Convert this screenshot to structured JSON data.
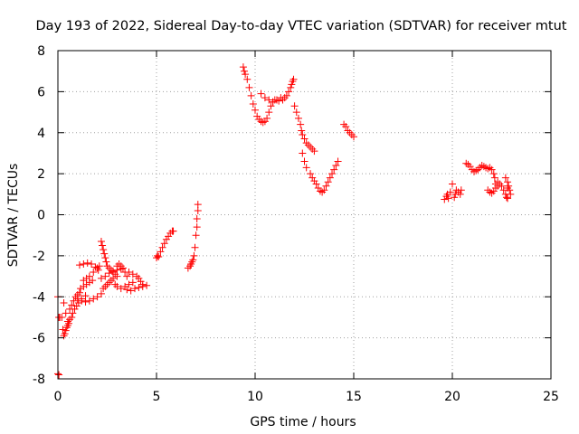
{
  "chart_data": {
    "type": "scatter",
    "title": "Day 193 of 2022, Sidereal Day-to-day VTEC variation (SDTVAR) for receiver mtut",
    "xlabel": "GPS time / hours",
    "ylabel": "SDTVAR / TECUs",
    "xlim": [
      0,
      25
    ],
    "ylim": [
      -8,
      8
    ],
    "xticks": [
      0,
      5,
      10,
      15,
      20,
      25
    ],
    "yticks": [
      -8,
      -6,
      -4,
      -2,
      0,
      2,
      4,
      6,
      8
    ],
    "grid": true,
    "marker": "+",
    "series": [
      {
        "name": "SDTVAR",
        "color": "#ff0000",
        "points": [
          [
            0.0,
            -7.75
          ],
          [
            0.05,
            -7.8
          ],
          [
            0.0,
            -4.0
          ],
          [
            0.05,
            -5.0
          ],
          [
            0.1,
            -5.0
          ],
          [
            0.2,
            -5.0
          ],
          [
            0.25,
            -5.6
          ],
          [
            0.3,
            -5.9
          ],
          [
            0.35,
            -5.8
          ],
          [
            0.4,
            -5.65
          ],
          [
            0.45,
            -5.5
          ],
          [
            0.5,
            -5.4
          ],
          [
            0.3,
            -4.3
          ],
          [
            0.4,
            -4.8
          ],
          [
            0.5,
            -5.2
          ],
          [
            0.55,
            -5.3
          ],
          [
            0.6,
            -5.1
          ],
          [
            0.7,
            -5.0
          ],
          [
            0.6,
            -4.6
          ],
          [
            0.7,
            -4.4
          ],
          [
            0.8,
            -4.2
          ],
          [
            0.9,
            -4.0
          ],
          [
            1.0,
            -3.9
          ],
          [
            1.1,
            -3.8
          ],
          [
            0.75,
            -4.8
          ],
          [
            0.85,
            -4.6
          ],
          [
            0.95,
            -4.45
          ],
          [
            1.05,
            -4.3
          ],
          [
            1.2,
            -4.1
          ],
          [
            1.4,
            -3.95
          ],
          [
            1.0,
            -4.1
          ],
          [
            1.15,
            -3.6
          ],
          [
            1.3,
            -3.5
          ],
          [
            1.45,
            -3.4
          ],
          [
            1.6,
            -3.3
          ],
          [
            1.75,
            -3.2
          ],
          [
            1.2,
            -4.2
          ],
          [
            1.4,
            -4.25
          ],
          [
            1.6,
            -4.2
          ],
          [
            1.8,
            -4.1
          ],
          [
            2.0,
            -4.0
          ],
          [
            2.2,
            -3.85
          ],
          [
            1.3,
            -3.2
          ],
          [
            1.45,
            -3.1
          ],
          [
            1.6,
            -3.0
          ],
          [
            1.8,
            -2.8
          ],
          [
            2.0,
            -2.6
          ],
          [
            2.1,
            -2.5
          ],
          [
            1.1,
            -2.45
          ],
          [
            1.3,
            -2.4
          ],
          [
            1.5,
            -2.35
          ],
          [
            1.7,
            -2.4
          ],
          [
            1.9,
            -2.55
          ],
          [
            2.05,
            -2.7
          ],
          [
            2.2,
            -1.3
          ],
          [
            2.25,
            -1.5
          ],
          [
            2.3,
            -1.7
          ],
          [
            2.35,
            -1.9
          ],
          [
            2.4,
            -2.1
          ],
          [
            2.45,
            -2.3
          ],
          [
            2.5,
            -2.5
          ],
          [
            2.6,
            -2.6
          ],
          [
            2.7,
            -2.7
          ],
          [
            2.8,
            -2.8
          ],
          [
            2.9,
            -2.9
          ],
          [
            3.0,
            -3.0
          ],
          [
            2.3,
            -3.6
          ],
          [
            2.4,
            -3.5
          ],
          [
            2.5,
            -3.4
          ],
          [
            2.6,
            -3.3
          ],
          [
            2.7,
            -3.2
          ],
          [
            2.8,
            -3.1
          ],
          [
            2.2,
            -3.1
          ],
          [
            2.4,
            -3.0
          ],
          [
            2.6,
            -2.85
          ],
          [
            2.8,
            -2.75
          ],
          [
            3.0,
            -2.7
          ],
          [
            3.2,
            -2.65
          ],
          [
            3.0,
            -2.5
          ],
          [
            3.1,
            -2.4
          ],
          [
            3.2,
            -2.5
          ],
          [
            3.3,
            -2.6
          ],
          [
            3.4,
            -2.8
          ],
          [
            3.5,
            -3.0
          ],
          [
            2.9,
            -3.4
          ],
          [
            3.0,
            -3.5
          ],
          [
            3.2,
            -3.6
          ],
          [
            3.4,
            -3.5
          ],
          [
            3.6,
            -3.4
          ],
          [
            3.8,
            -3.3
          ],
          [
            3.6,
            -2.8
          ],
          [
            3.8,
            -2.9
          ],
          [
            4.0,
            -3.0
          ],
          [
            4.1,
            -3.1
          ],
          [
            4.2,
            -3.25
          ],
          [
            4.3,
            -3.4
          ],
          [
            3.5,
            -3.65
          ],
          [
            3.7,
            -3.7
          ],
          [
            3.9,
            -3.6
          ],
          [
            4.1,
            -3.55
          ],
          [
            4.3,
            -3.5
          ],
          [
            4.5,
            -3.45
          ],
          [
            5.0,
            -2.1
          ],
          [
            5.05,
            -2.0
          ],
          [
            5.1,
            -2.05
          ],
          [
            5.2,
            -1.8
          ],
          [
            5.3,
            -1.6
          ],
          [
            5.4,
            -1.4
          ],
          [
            5.5,
            -1.2
          ],
          [
            5.6,
            -1.05
          ],
          [
            5.7,
            -0.9
          ],
          [
            5.8,
            -0.8
          ],
          [
            5.85,
            -0.8
          ],
          [
            6.6,
            -2.6
          ],
          [
            6.7,
            -2.5
          ],
          [
            6.75,
            -2.4
          ],
          [
            6.8,
            -2.3
          ],
          [
            6.85,
            -2.2
          ],
          [
            6.9,
            -2.0
          ],
          [
            6.95,
            -1.6
          ],
          [
            7.0,
            -1.0
          ],
          [
            7.05,
            -0.6
          ],
          [
            7.05,
            -0.2
          ],
          [
            7.1,
            0.2
          ],
          [
            7.1,
            0.5
          ],
          [
            9.4,
            7.2
          ],
          [
            9.45,
            7.0
          ],
          [
            9.5,
            6.85
          ],
          [
            9.6,
            6.6
          ],
          [
            9.7,
            6.2
          ],
          [
            9.8,
            5.8
          ],
          [
            9.9,
            5.4
          ],
          [
            10.0,
            5.1
          ],
          [
            10.1,
            4.8
          ],
          [
            10.2,
            4.65
          ],
          [
            10.3,
            4.55
          ],
          [
            10.4,
            4.5
          ],
          [
            10.5,
            4.55
          ],
          [
            10.6,
            4.7
          ],
          [
            10.7,
            5.0
          ],
          [
            10.8,
            5.3
          ],
          [
            10.9,
            5.5
          ],
          [
            11.0,
            5.6
          ],
          [
            10.3,
            5.9
          ],
          [
            10.5,
            5.7
          ],
          [
            10.7,
            5.6
          ],
          [
            10.9,
            5.5
          ],
          [
            11.1,
            5.6
          ],
          [
            11.3,
            5.7
          ],
          [
            11.2,
            5.55
          ],
          [
            11.4,
            5.6
          ],
          [
            11.5,
            5.7
          ],
          [
            11.6,
            5.8
          ],
          [
            11.7,
            6.0
          ],
          [
            11.8,
            6.2
          ],
          [
            11.85,
            6.35
          ],
          [
            11.9,
            6.5
          ],
          [
            11.95,
            6.6
          ],
          [
            12.0,
            5.3
          ],
          [
            12.1,
            5.0
          ],
          [
            12.2,
            4.7
          ],
          [
            12.3,
            4.4
          ],
          [
            12.35,
            4.1
          ],
          [
            12.4,
            3.9
          ],
          [
            12.5,
            3.7
          ],
          [
            12.6,
            3.5
          ],
          [
            12.7,
            3.4
          ],
          [
            12.8,
            3.3
          ],
          [
            12.9,
            3.2
          ],
          [
            13.0,
            3.1
          ],
          [
            12.4,
            3.0
          ],
          [
            12.5,
            2.6
          ],
          [
            12.6,
            2.3
          ],
          [
            12.8,
            2.0
          ],
          [
            12.9,
            1.8
          ],
          [
            13.0,
            1.65
          ],
          [
            13.1,
            1.5
          ],
          [
            13.2,
            1.3
          ],
          [
            13.3,
            1.15
          ],
          [
            13.4,
            1.1
          ],
          [
            13.5,
            1.2
          ],
          [
            13.6,
            1.4
          ],
          [
            13.7,
            1.6
          ],
          [
            13.8,
            1.8
          ],
          [
            13.9,
            2.0
          ],
          [
            14.0,
            2.2
          ],
          [
            14.1,
            2.4
          ],
          [
            14.2,
            2.6
          ],
          [
            14.5,
            4.4
          ],
          [
            14.6,
            4.3
          ],
          [
            14.7,
            4.1
          ],
          [
            14.8,
            4.0
          ],
          [
            14.9,
            3.9
          ],
          [
            15.0,
            3.8
          ],
          [
            19.6,
            0.75
          ],
          [
            19.7,
            0.9
          ],
          [
            19.75,
            1.0
          ],
          [
            19.8,
            0.8
          ],
          [
            19.9,
            1.1
          ],
          [
            20.0,
            1.5
          ],
          [
            20.1,
            0.85
          ],
          [
            20.15,
            1.0
          ],
          [
            20.2,
            1.2
          ],
          [
            20.3,
            1.1
          ],
          [
            20.4,
            1.0
          ],
          [
            20.45,
            1.2
          ],
          [
            20.7,
            2.5
          ],
          [
            20.8,
            2.45
          ],
          [
            20.9,
            2.35
          ],
          [
            21.0,
            2.2
          ],
          [
            21.1,
            2.1
          ],
          [
            21.2,
            2.15
          ],
          [
            21.3,
            2.2
          ],
          [
            21.4,
            2.3
          ],
          [
            21.5,
            2.4
          ],
          [
            21.6,
            2.35
          ],
          [
            21.7,
            2.3
          ],
          [
            21.8,
            2.25
          ],
          [
            21.9,
            2.3
          ],
          [
            22.0,
            2.2
          ],
          [
            22.1,
            2.0
          ],
          [
            22.15,
            1.8
          ],
          [
            22.2,
            1.5
          ],
          [
            22.3,
            1.6
          ],
          [
            21.8,
            1.2
          ],
          [
            21.9,
            1.1
          ],
          [
            22.0,
            1.05
          ],
          [
            22.1,
            1.15
          ],
          [
            22.2,
            1.3
          ],
          [
            22.3,
            1.4
          ],
          [
            22.4,
            1.5
          ],
          [
            22.5,
            1.4
          ],
          [
            22.6,
            1.2
          ],
          [
            22.7,
            1.0
          ],
          [
            22.75,
            0.85
          ],
          [
            22.8,
            1.3
          ],
          [
            22.7,
            1.8
          ],
          [
            22.8,
            1.6
          ],
          [
            22.85,
            1.4
          ],
          [
            22.9,
            1.2
          ],
          [
            22.95,
            1.0
          ],
          [
            22.8,
            0.8
          ]
        ]
      }
    ]
  }
}
